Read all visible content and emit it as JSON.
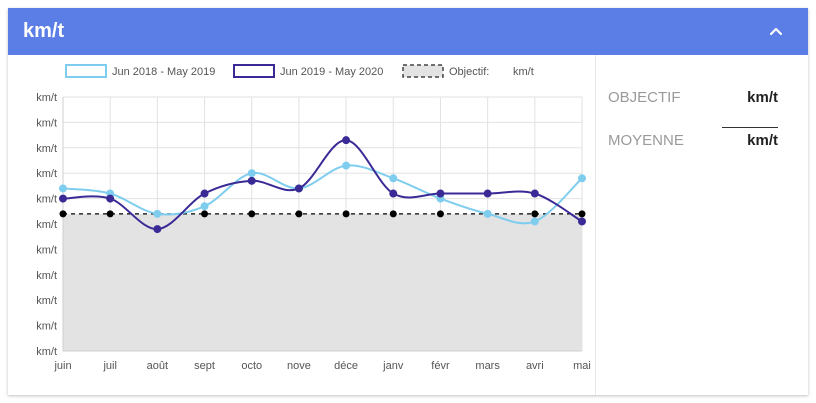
{
  "card": {
    "title": "km/t"
  },
  "legend": {
    "series1": "Jun 2018 - May 2019",
    "series2": "Jun 2019 - May 2020",
    "target_label": "Objectif:",
    "target_unit": "km/t"
  },
  "stats": {
    "objectif_label": "OBJECTIF",
    "objectif_value": "km/t",
    "moyenne_label": "MOYENNE",
    "moyenne_value": "km/t"
  },
  "colors": {
    "header": "#5a7de6",
    "series1": "#7fcdee",
    "series2": "#3a2a96",
    "target_fill": "#e3e3e3",
    "target_line": "#000000"
  },
  "icons": {
    "collapse": "chevron-up-icon"
  },
  "chart_data": {
    "type": "line",
    "categories": [
      "juin",
      "juil",
      "août",
      "sept",
      "octo",
      "nove",
      "déce",
      "janv",
      "févr",
      "mars",
      "avri",
      "mai"
    ],
    "y_tick_labels": [
      "km/t",
      "km/t",
      "km/t",
      "km/t",
      "km/t",
      "km/t",
      "km/t",
      "km/t",
      "km/t",
      "km/t",
      "km/t"
    ],
    "ylim": [
      0,
      10
    ],
    "grid": true,
    "legend_position": "top",
    "target": 5.4,
    "series": [
      {
        "name": "Jun 2018 - May 2019",
        "values": [
          6.4,
          6.2,
          5.4,
          5.7,
          7.0,
          6.4,
          7.3,
          6.8,
          6.0,
          5.4,
          5.1,
          6.8
        ]
      },
      {
        "name": "Jun 2019 - May 2020",
        "values": [
          6.0,
          6.0,
          4.8,
          6.2,
          6.7,
          6.4,
          8.3,
          6.2,
          6.2,
          6.2,
          6.2,
          5.1
        ]
      }
    ]
  }
}
